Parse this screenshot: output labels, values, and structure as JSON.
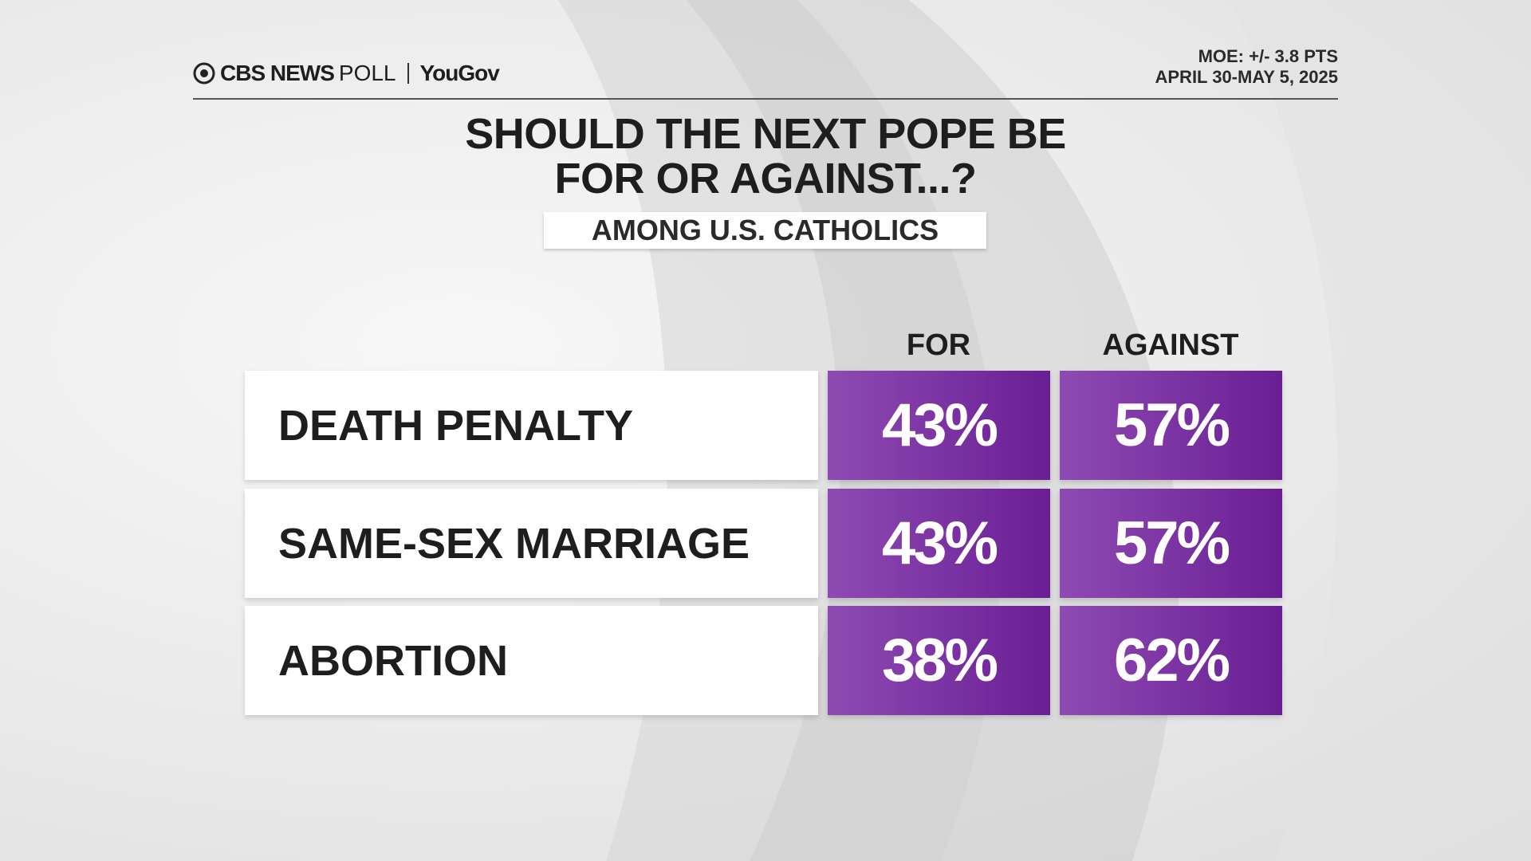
{
  "header": {
    "brand": "CBS NEWS",
    "brand_suffix": "POLL",
    "partner": "YouGov",
    "moe": "MOE: +/- 3.8 PTS",
    "dates": "APRIL 30-MAY 5, 2025"
  },
  "title": [
    "SHOULD THE NEXT POPE BE",
    "FOR OR AGAINST...?"
  ],
  "subtitle": "AMONG U.S. CATHOLICS",
  "table": {
    "columns": [
      "FOR",
      "AGAINST"
    ],
    "rows": [
      {
        "label": "DEATH PENALTY",
        "values": [
          "43%",
          "57%"
        ]
      },
      {
        "label": "SAME-SEX MARRIAGE",
        "values": [
          "43%",
          "57%"
        ]
      },
      {
        "label": "ABORTION",
        "values": [
          "38%",
          "62%"
        ]
      }
    ]
  }
}
